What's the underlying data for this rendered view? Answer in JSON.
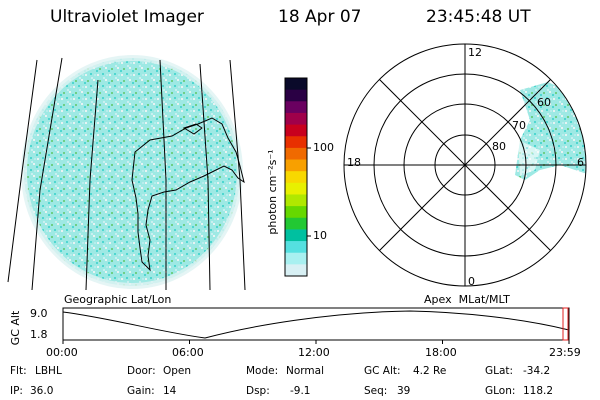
{
  "header": {
    "instrument": "Ultraviolet Imager",
    "date": "18 Apr 07",
    "time": "23:45:48 UT"
  },
  "geo_panel": {
    "label": "Geographic Lat/Lon"
  },
  "colorbar": {
    "unit_label": "photon cm⁻²s⁻¹",
    "ticks": [
      "100",
      "10"
    ],
    "colors": [
      "#0a0a2a",
      "#2a0044",
      "#6a0060",
      "#a0004a",
      "#c8001e",
      "#e83000",
      "#f06a00",
      "#f8a000",
      "#f8d800",
      "#e8f000",
      "#b0e800",
      "#66d800",
      "#22c833",
      "#00c0a0",
      "#55e0e0",
      "#a8f0f0",
      "#d8f0f4"
    ]
  },
  "polar_panel": {
    "label": "Apex  MLat/MLT",
    "mlt_labels": {
      "top": "12",
      "left": "18",
      "right": "6",
      "bottom": "0"
    },
    "lat_labels": [
      "60",
      "70",
      "80"
    ]
  },
  "altitude_plot": {
    "ylabel": "GC Alt",
    "y_ticks": [
      "9.0",
      "1.8"
    ],
    "x_ticks": [
      "00:00",
      "06:00",
      "12:00",
      "18:00",
      "23:59"
    ]
  },
  "status": {
    "row1": [
      {
        "key": "Flt:",
        "value": "LBHL"
      },
      {
        "key": "Door:",
        "value": "Open"
      },
      {
        "key": "Mode:",
        "value": "Normal"
      },
      {
        "key": "GC Alt:",
        "value": "4.2 Re"
      },
      {
        "key": "GLat:",
        "value": "-34.2"
      }
    ],
    "row2": [
      {
        "key": "IP:",
        "value": "36.0"
      },
      {
        "key": "Gain:",
        "value": "14"
      },
      {
        "key": "Dsp:",
        "value": "-9.1"
      },
      {
        "key": "Seq:",
        "value": "39"
      },
      {
        "key": "GLon:",
        "value": "118.2"
      }
    ]
  },
  "accent": {
    "swath": "#7fe3e0",
    "marker": "#e02020"
  }
}
